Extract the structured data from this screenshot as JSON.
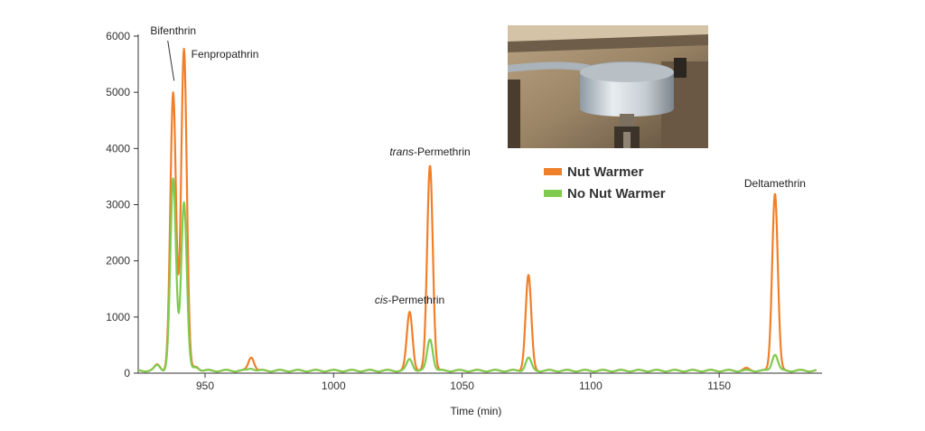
{
  "chart_data": {
    "type": "line",
    "title": "",
    "xlabel": "Time (min)",
    "ylabel": "",
    "xlim": [
      924,
      1190
    ],
    "ylim": [
      0,
      6000
    ],
    "x_ticks": [
      "950",
      "1000",
      "1050",
      "1100",
      "1150"
    ],
    "y_ticks": [
      "0",
      "1000",
      "2000",
      "3000",
      "4000",
      "5000",
      "6000"
    ],
    "grid": false,
    "legend_position": "right of photo",
    "colors": {
      "Nut Warmer": "#f07f2a",
      "No Nut Warmer": "#7ecb4f"
    },
    "series": [
      {
        "name": "Nut Warmer",
        "peaks": [
          {
            "x": 931.5,
            "y": 150
          },
          {
            "x": 937.6,
            "y": 4980
          },
          {
            "x": 941.8,
            "y": 5780
          },
          {
            "x": 946.5,
            "y": 120
          },
          {
            "x": 968,
            "y": 290
          },
          {
            "x": 1029.6,
            "y": 1090
          },
          {
            "x": 1037.5,
            "y": 3710
          },
          {
            "x": 1075.8,
            "y": 1740
          },
          {
            "x": 1160.5,
            "y": 80
          },
          {
            "x": 1171.7,
            "y": 3210
          }
        ]
      },
      {
        "name": "No Nut Warmer",
        "peaks": [
          {
            "x": 931.5,
            "y": 140
          },
          {
            "x": 937.6,
            "y": 3450
          },
          {
            "x": 941.8,
            "y": 3050
          },
          {
            "x": 946.5,
            "y": 110
          },
          {
            "x": 968,
            "y": 90
          },
          {
            "x": 1029.6,
            "y": 250
          },
          {
            "x": 1037.5,
            "y": 610
          },
          {
            "x": 1075.8,
            "y": 270
          },
          {
            "x": 1171.7,
            "y": 340
          }
        ]
      }
    ],
    "annotations": [
      {
        "italic": "",
        "text": "Bifenthrin",
        "x": 937.6,
        "y": 4980
      },
      {
        "italic": "",
        "text": "Fenpropathrin",
        "x": 941.8,
        "y": 5780
      },
      {
        "italic": "cis",
        "text": "-Permethrin",
        "x": 1029.6,
        "y": 1090
      },
      {
        "italic": "trans",
        "text": "-Permethrin",
        "x": 1037.5,
        "y": 3710
      },
      {
        "italic": "",
        "text": "Deltamethrin",
        "x": 1171.7,
        "y": 3210
      }
    ]
  },
  "photo": {
    "subject": "nut warmer attached to instrument"
  }
}
